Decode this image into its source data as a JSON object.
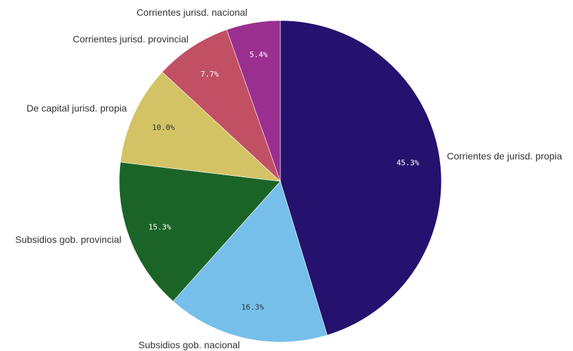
{
  "chart_data": {
    "type": "pie",
    "title": "",
    "start_angle_deg": 0,
    "direction": "clockwise",
    "slices": [
      {
        "label": "Corrientes de jurisd. propia",
        "value": 45.3,
        "value_label": "45.3%",
        "color": "#24126e",
        "value_color": "#ffffff"
      },
      {
        "label": "Subsidios gob. nacional",
        "value": 16.3,
        "value_label": "16.3%",
        "color": "#75bfea",
        "value_color": "#333333"
      },
      {
        "label": "Subsidios gob. provincial",
        "value": 15.3,
        "value_label": "15.3%",
        "color": "#1b6428",
        "value_color": "#ffffff"
      },
      {
        "label": "De capital jurisd. propia",
        "value": 10.0,
        "value_label": "10.0%",
        "color": "#d4c365",
        "value_color": "#333333"
      },
      {
        "label": "Corrientes jurisd. provincial",
        "value": 7.7,
        "value_label": "7.7%",
        "color": "#c25065",
        "value_color": "#ffffff"
      },
      {
        "label": "Corrientes jurisd. nacional",
        "value": 5.4,
        "value_label": "5.4%",
        "color": "#9b2f90",
        "value_color": "#ffffff"
      }
    ]
  }
}
